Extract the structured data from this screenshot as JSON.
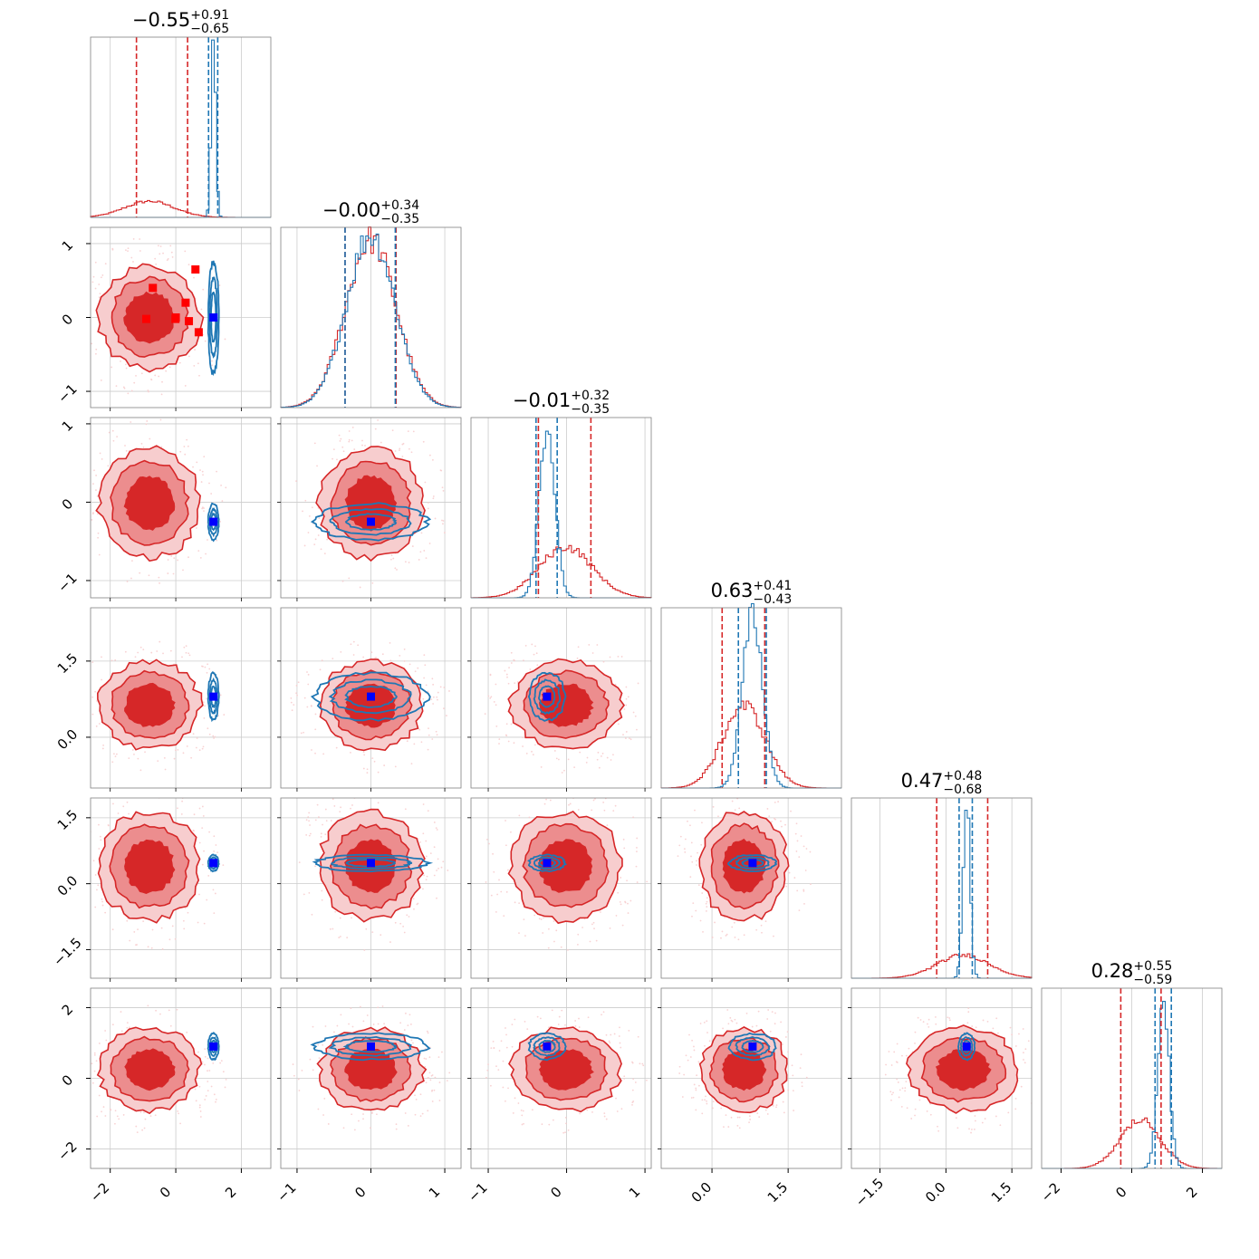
{
  "chart_data": {
    "type": "corner",
    "n_params": 6,
    "colors": {
      "posterior_a": "#d62728",
      "posterior_a_mid": "#ec8d8e",
      "posterior_a_light": "#f7cdce",
      "posterior_b": "#1f77b4",
      "marker_blue": "#0000ff",
      "marker_red": "#ff0000",
      "grid": "#cccccc",
      "frame": "#808080"
    },
    "params": [
      {
        "range": [
          -2.6,
          2.9
        ],
        "ticks": [
          -2,
          0,
          2
        ],
        "tick_labels": [
          "−2",
          "0",
          "2"
        ],
        "title": {
          "median": "−0.55",
          "plus": "+0.91",
          "minus": "−0.65"
        },
        "red": {
          "mean": -0.8,
          "sd": 0.75,
          "q_lo": -1.2,
          "q_hi": 0.36
        },
        "blue": {
          "mean": 1.15,
          "sd": 0.07,
          "q_lo": 1.0,
          "q_hi": 1.28
        },
        "truth": 1.15
      },
      {
        "range": [
          -1.22,
          1.22
        ],
        "ticks": [
          -1,
          0,
          1
        ],
        "tick_labels": [
          "−1",
          "0",
          "1"
        ],
        "title": {
          "median": "−0.00",
          "plus": "+0.34",
          "minus": "−0.35"
        },
        "red": {
          "mean": 0.0,
          "sd": 0.34,
          "q_lo": -0.35,
          "q_hi": 0.34
        },
        "blue": {
          "mean": 0.0,
          "sd": 0.33,
          "q_lo": -0.35,
          "q_hi": 0.33
        },
        "truth": 0.0
      },
      {
        "range": [
          -1.22,
          1.08
        ],
        "ticks": [
          -1,
          0,
          1
        ],
        "tick_labels": [
          "−1",
          "0",
          "1"
        ],
        "title": {
          "median": "−0.01",
          "plus": "+0.32",
          "minus": "−0.35"
        },
        "red": {
          "mean": -0.01,
          "sd": 0.34,
          "q_lo": -0.36,
          "q_hi": 0.31
        },
        "blue": {
          "mean": -0.25,
          "sd": 0.1,
          "q_lo": -0.39,
          "q_hi": -0.12
        },
        "truth": -0.25
      },
      {
        "range": [
          -1.0,
          2.55
        ],
        "ticks": [
          0.0,
          1.5
        ],
        "tick_labels": [
          "0.0",
          "1.5"
        ],
        "title": {
          "median": "0.63",
          "plus": "+0.41",
          "minus": "−0.43"
        },
        "red": {
          "mean": 0.63,
          "sd": 0.42,
          "q_lo": 0.2,
          "q_hi": 1.04
        },
        "blue": {
          "mean": 0.8,
          "sd": 0.2,
          "q_lo": 0.52,
          "q_hi": 1.07
        },
        "truth": 0.8
      },
      {
        "range": [
          -2.15,
          1.95
        ],
        "ticks": [
          -1.5,
          0.0,
          1.5
        ],
        "tick_labels": [
          "−1.5",
          "0.0",
          "1.5"
        ],
        "title": {
          "median": "0.47",
          "plus": "+0.48",
          "minus": "−0.68"
        },
        "red": {
          "mean": 0.4,
          "sd": 0.6,
          "q_lo": -0.21,
          "q_hi": 0.95
        },
        "blue": {
          "mean": 0.47,
          "sd": 0.08,
          "q_lo": 0.3,
          "q_hi": 0.6
        },
        "truth": 0.47
      },
      {
        "range": [
          -2.55,
          2.55
        ],
        "ticks": [
          -2,
          0,
          2
        ],
        "tick_labels": [
          "−2",
          "0",
          "2"
        ],
        "title": {
          "median": "0.28",
          "plus": "+0.55",
          "minus": "−0.59"
        },
        "red": {
          "mean": 0.25,
          "sd": 0.57,
          "q_lo": -0.31,
          "q_hi": 0.83
        },
        "blue": {
          "mean": 0.9,
          "sd": 0.16,
          "q_lo": 0.66,
          "q_hi": 1.12
        },
        "truth": 0.9
      }
    ],
    "red_markers": [
      [
        -0.9,
        -0.02
      ],
      [
        -0.7,
        0.4
      ],
      [
        0.3,
        0.2
      ],
      [
        0.7,
        -0.2
      ],
      [
        0.0,
        0.0
      ],
      [
        -0.01,
        -0.02
      ],
      [
        0.6,
        0.65
      ],
      [
        0.4,
        -0.05
      ]
    ],
    "blue_truth": [
      1.15,
      0.0,
      -0.25,
      0.8,
      0.47,
      0.9
    ],
    "grid": true
  }
}
